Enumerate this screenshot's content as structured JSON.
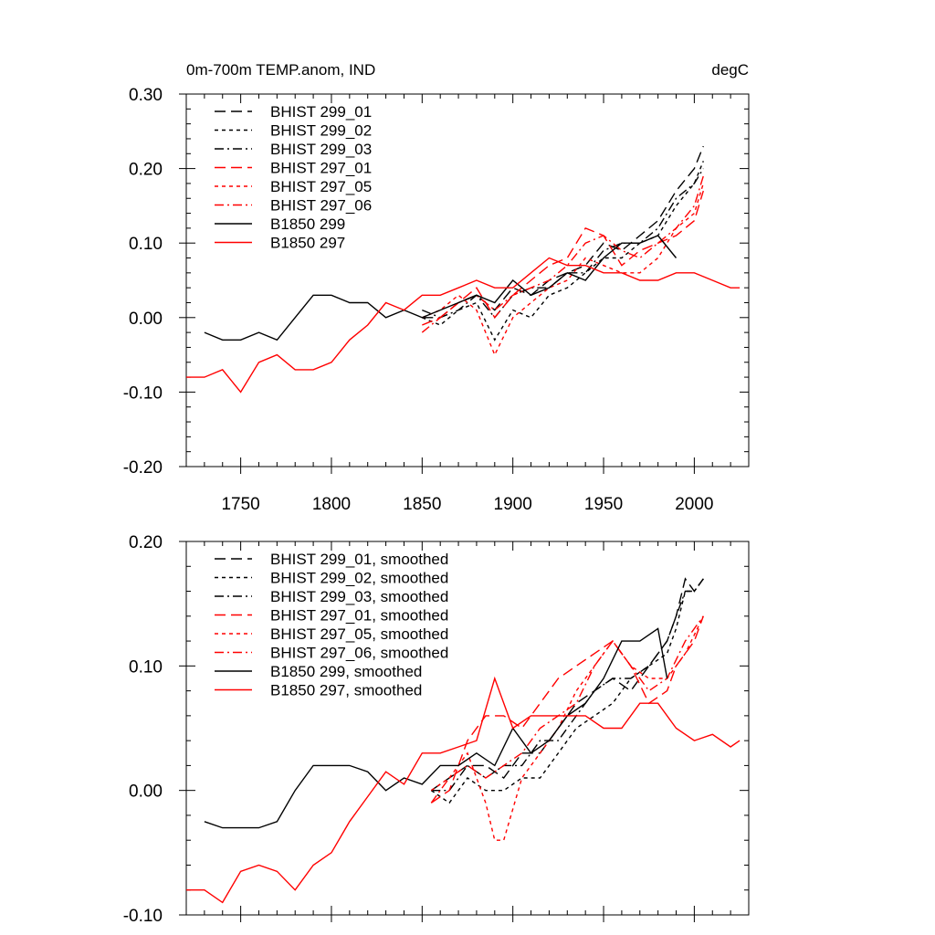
{
  "chart_data": [
    {
      "type": "line",
      "title_left": "0m-700m TEMP.anom, IND",
      "title_right": "degC",
      "xlim": [
        1720,
        2030
      ],
      "ylim": [
        -0.2,
        0.3
      ],
      "x_ticks": [
        1750,
        1800,
        1850,
        1900,
        1950,
        2000
      ],
      "x_tick_labels": [
        "1750",
        "1800",
        "1850",
        "1900",
        "1950",
        "2000"
      ],
      "y_ticks": [
        -0.2,
        -0.1,
        0.0,
        0.1,
        0.2,
        0.3
      ],
      "y_tick_labels": [
        "-0.20",
        "-0.10",
        "0.00",
        "0.10",
        "0.20",
        "0.30"
      ],
      "series": [
        {
          "name": "BHIST 299_01",
          "color": "#000000",
          "dash": "dash",
          "x": [
            1850,
            1860,
            1870,
            1880,
            1890,
            1900,
            1910,
            1920,
            1930,
            1940,
            1950,
            1960,
            1970,
            1980,
            1990,
            2000,
            2005
          ],
          "y": [
            0.0,
            0.0,
            0.02,
            0.03,
            0.01,
            0.04,
            0.03,
            0.05,
            0.06,
            0.07,
            0.1,
            0.09,
            0.11,
            0.13,
            0.17,
            0.2,
            0.23
          ]
        },
        {
          "name": "BHIST 299_02",
          "color": "#000000",
          "dash": "dot",
          "x": [
            1850,
            1860,
            1870,
            1880,
            1890,
            1900,
            1910,
            1920,
            1930,
            1940,
            1950,
            1960,
            1970,
            1980,
            1990,
            2000,
            2005
          ],
          "y": [
            0.0,
            -0.01,
            0.01,
            0.02,
            -0.03,
            0.01,
            0.0,
            0.03,
            0.04,
            0.06,
            0.08,
            0.08,
            0.1,
            0.11,
            0.15,
            0.18,
            0.21
          ]
        },
        {
          "name": "BHIST 299_03",
          "color": "#000000",
          "dash": "dashdot",
          "x": [
            1850,
            1860,
            1870,
            1880,
            1890,
            1900,
            1910,
            1920,
            1930,
            1940,
            1950,
            1960,
            1970,
            1980,
            1990,
            2000,
            2005
          ],
          "y": [
            0.01,
            0.0,
            0.01,
            0.03,
            0.0,
            0.03,
            0.04,
            0.04,
            0.06,
            0.06,
            0.09,
            0.1,
            0.1,
            0.12,
            0.16,
            0.18,
            0.2
          ]
        },
        {
          "name": "BHIST 297_01",
          "color": "#ff0000",
          "dash": "dash",
          "x": [
            1850,
            1860,
            1870,
            1880,
            1890,
            1900,
            1910,
            1920,
            1930,
            1940,
            1950,
            1960,
            1970,
            1980,
            1990,
            2000,
            2005
          ],
          "y": [
            -0.01,
            0.0,
            0.02,
            0.04,
            0.0,
            0.03,
            0.05,
            0.07,
            0.08,
            0.12,
            0.11,
            0.07,
            0.09,
            0.1,
            0.11,
            0.13,
            0.17
          ]
        },
        {
          "name": "BHIST 297_05",
          "color": "#ff0000",
          "dash": "dot",
          "x": [
            1850,
            1860,
            1870,
            1880,
            1890,
            1900,
            1910,
            1920,
            1930,
            1940,
            1950,
            1960,
            1970,
            1980,
            1990,
            2000,
            2005
          ],
          "y": [
            0.0,
            0.01,
            0.03,
            0.01,
            -0.05,
            0.0,
            0.02,
            0.04,
            0.05,
            0.08,
            0.07,
            0.06,
            0.06,
            0.08,
            0.12,
            0.14,
            0.18
          ]
        },
        {
          "name": "BHIST 297_06",
          "color": "#ff0000",
          "dash": "dashdot",
          "x": [
            1850,
            1860,
            1870,
            1880,
            1890,
            1900,
            1910,
            1920,
            1930,
            1940,
            1950,
            1960,
            1970,
            1980,
            1990,
            2000,
            2005
          ],
          "y": [
            -0.02,
            0.0,
            0.02,
            0.03,
            0.01,
            0.03,
            0.04,
            0.05,
            0.07,
            0.1,
            0.11,
            0.09,
            0.08,
            0.1,
            0.12,
            0.15,
            0.19
          ]
        },
        {
          "name": "B1850 299",
          "color": "#000000",
          "dash": "solid",
          "x": [
            1730,
            1740,
            1750,
            1760,
            1770,
            1780,
            1790,
            1800,
            1810,
            1820,
            1830,
            1840,
            1850,
            1860,
            1870,
            1880,
            1890,
            1900,
            1910,
            1920,
            1930,
            1940,
            1950,
            1960,
            1970,
            1980,
            1990
          ],
          "y": [
            -0.02,
            -0.03,
            -0.03,
            -0.02,
            -0.03,
            0.0,
            0.03,
            0.03,
            0.02,
            0.02,
            0.0,
            0.01,
            0.0,
            0.01,
            0.02,
            0.03,
            0.02,
            0.05,
            0.03,
            0.04,
            0.06,
            0.05,
            0.08,
            0.1,
            0.1,
            0.11,
            0.08
          ]
        },
        {
          "name": "B1850 297",
          "color": "#ff0000",
          "dash": "solid",
          "x": [
            1720,
            1730,
            1740,
            1750,
            1760,
            1770,
            1780,
            1790,
            1800,
            1810,
            1820,
            1830,
            1840,
            1850,
            1860,
            1870,
            1880,
            1890,
            1900,
            1910,
            1920,
            1930,
            1940,
            1950,
            1960,
            1970,
            1980,
            1990,
            2000,
            2010,
            2020,
            2025
          ],
          "y": [
            -0.08,
            -0.08,
            -0.07,
            -0.1,
            -0.06,
            -0.05,
            -0.07,
            -0.07,
            -0.06,
            -0.03,
            -0.01,
            0.02,
            0.01,
            0.03,
            0.03,
            0.04,
            0.05,
            0.04,
            0.04,
            0.06,
            0.08,
            0.07,
            0.07,
            0.06,
            0.06,
            0.05,
            0.05,
            0.06,
            0.06,
            0.05,
            0.04,
            0.04
          ]
        }
      ]
    },
    {
      "type": "line",
      "xlim": [
        1720,
        2030
      ],
      "ylim": [
        -0.1,
        0.2
      ],
      "x_ticks": [
        1750,
        1800,
        1850,
        1900,
        1950,
        2000
      ],
      "y_ticks": [
        -0.1,
        0.0,
        0.1,
        0.2
      ],
      "y_tick_labels": [
        "-0.10",
        "0.00",
        "0.10",
        "0.20"
      ],
      "series": [
        {
          "name": "BHIST 299_01, smoothed",
          "color": "#000000",
          "dash": "dash",
          "x": [
            1855,
            1865,
            1875,
            1885,
            1895,
            1905,
            1915,
            1925,
            1935,
            1945,
            1955,
            1965,
            1975,
            1985,
            1990,
            1995,
            2000,
            2005
          ],
          "y": [
            0.0,
            0.01,
            0.02,
            0.02,
            0.01,
            0.03,
            0.03,
            0.05,
            0.07,
            0.08,
            0.09,
            0.08,
            0.1,
            0.12,
            0.14,
            0.17,
            0.16,
            0.17
          ]
        },
        {
          "name": "BHIST 299_02, smoothed",
          "color": "#000000",
          "dash": "dot",
          "x": [
            1855,
            1865,
            1875,
            1885,
            1895,
            1905,
            1915,
            1925,
            1935,
            1945,
            1955,
            1965,
            1975,
            1985,
            1990,
            1995,
            2000,
            2005
          ],
          "y": [
            0.0,
            -0.01,
            0.01,
            0.0,
            0.0,
            0.01,
            0.01,
            0.03,
            0.05,
            0.06,
            0.07,
            0.09,
            0.1,
            0.11,
            0.13,
            0.16,
            0.16,
            0.17
          ]
        },
        {
          "name": "BHIST 299_03, smoothed",
          "color": "#000000",
          "dash": "dashdot",
          "x": [
            1855,
            1865,
            1875,
            1885,
            1895,
            1905,
            1915,
            1925,
            1935,
            1945,
            1955,
            1965,
            1975,
            1985,
            1990,
            1995,
            2000,
            2005
          ],
          "y": [
            0.0,
            0.0,
            0.02,
            0.01,
            0.02,
            0.02,
            0.04,
            0.04,
            0.06,
            0.08,
            0.09,
            0.09,
            0.1,
            0.12,
            0.14,
            0.16,
            0.16,
            0.17
          ]
        },
        {
          "name": "BHIST 297_01, smoothed",
          "color": "#ff0000",
          "dash": "dash",
          "x": [
            1855,
            1865,
            1875,
            1885,
            1895,
            1905,
            1915,
            1925,
            1935,
            1945,
            1955,
            1965,
            1975,
            1985,
            1990,
            1995,
            2000,
            2005
          ],
          "y": [
            -0.01,
            0.0,
            0.04,
            0.06,
            0.06,
            0.05,
            0.07,
            0.09,
            0.1,
            0.11,
            0.12,
            0.1,
            0.07,
            0.08,
            0.1,
            0.11,
            0.12,
            0.14
          ]
        },
        {
          "name": "BHIST 297_05, smoothed",
          "color": "#ff0000",
          "dash": "dot",
          "x": [
            1855,
            1865,
            1875,
            1885,
            1890,
            1895,
            1905,
            1915,
            1925,
            1935,
            1945,
            1955,
            1965,
            1975,
            1985,
            1995,
            2005
          ],
          "y": [
            0.0,
            0.01,
            0.03,
            -0.01,
            -0.04,
            -0.04,
            0.01,
            0.03,
            0.05,
            0.08,
            0.1,
            0.12,
            0.1,
            0.09,
            0.09,
            0.11,
            0.14
          ]
        },
        {
          "name": "BHIST 297_06, smoothed",
          "color": "#ff0000",
          "dash": "dashdot",
          "x": [
            1855,
            1865,
            1875,
            1885,
            1895,
            1905,
            1915,
            1925,
            1935,
            1945,
            1955,
            1965,
            1975,
            1985,
            1995,
            2005
          ],
          "y": [
            -0.01,
            0.01,
            0.02,
            0.01,
            0.02,
            0.03,
            0.05,
            0.06,
            0.07,
            0.1,
            0.12,
            0.1,
            0.08,
            0.09,
            0.12,
            0.14
          ]
        },
        {
          "name": "B1850 299, smoothed",
          "color": "#000000",
          "dash": "solid",
          "x": [
            1730,
            1740,
            1750,
            1760,
            1770,
            1780,
            1790,
            1800,
            1810,
            1820,
            1830,
            1840,
            1850,
            1860,
            1870,
            1880,
            1890,
            1900,
            1910,
            1920,
            1930,
            1940,
            1950,
            1960,
            1970,
            1980,
            1985
          ],
          "y": [
            -0.025,
            -0.03,
            -0.03,
            -0.03,
            -0.025,
            0.0,
            0.02,
            0.02,
            0.02,
            0.015,
            0.0,
            0.01,
            0.005,
            0.02,
            0.02,
            0.03,
            0.02,
            0.05,
            0.03,
            0.04,
            0.06,
            0.07,
            0.09,
            0.12,
            0.12,
            0.13,
            0.09
          ]
        },
        {
          "name": "B1850 297, smoothed",
          "color": "#ff0000",
          "dash": "solid",
          "x": [
            1720,
            1730,
            1740,
            1750,
            1760,
            1770,
            1780,
            1790,
            1800,
            1810,
            1820,
            1830,
            1840,
            1850,
            1860,
            1870,
            1880,
            1890,
            1900,
            1910,
            1920,
            1930,
            1940,
            1950,
            1960,
            1970,
            1980,
            1990,
            2000,
            2010,
            2020,
            2025
          ],
          "y": [
            -0.08,
            -0.08,
            -0.09,
            -0.065,
            -0.06,
            -0.065,
            -0.08,
            -0.06,
            -0.05,
            -0.025,
            -0.005,
            0.015,
            0.005,
            0.03,
            0.03,
            0.035,
            0.04,
            0.09,
            0.05,
            0.06,
            0.06,
            0.06,
            0.06,
            0.05,
            0.05,
            0.07,
            0.07,
            0.05,
            0.04,
            0.045,
            0.035,
            0.04
          ]
        }
      ]
    }
  ]
}
